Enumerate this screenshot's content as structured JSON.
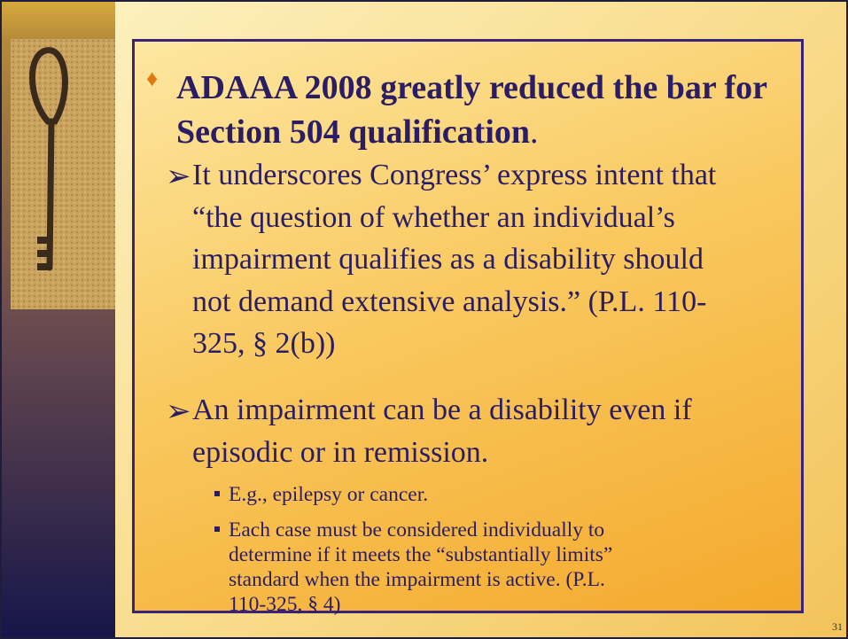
{
  "slide": {
    "heading": {
      "bold": "ADAAA 2008 greatly reduced the bar for Section 504 qualification",
      "tail": "."
    },
    "points": [
      {
        "lines": [
          "It underscores Congress’ express intent that",
          "“the question of whether an individual’s",
          "impairment qualifies as a disability should",
          "not demand extensive analysis.” (P.L. 110-",
          "325, § 2(b))"
        ]
      },
      {
        "lines": [
          "An impairment can be a disability even if",
          "episodic or in remission."
        ],
        "subpoints": [
          {
            "lines": [
              "E.g., epilepsy or cancer."
            ]
          },
          {
            "lines": [
              "Each case must be considered individually to",
              "determine if it meets the “substantially limits”",
              "standard when the impairment is active. (P.L.",
              "110-325, § 4)"
            ]
          }
        ]
      }
    ],
    "page_number": "31"
  }
}
